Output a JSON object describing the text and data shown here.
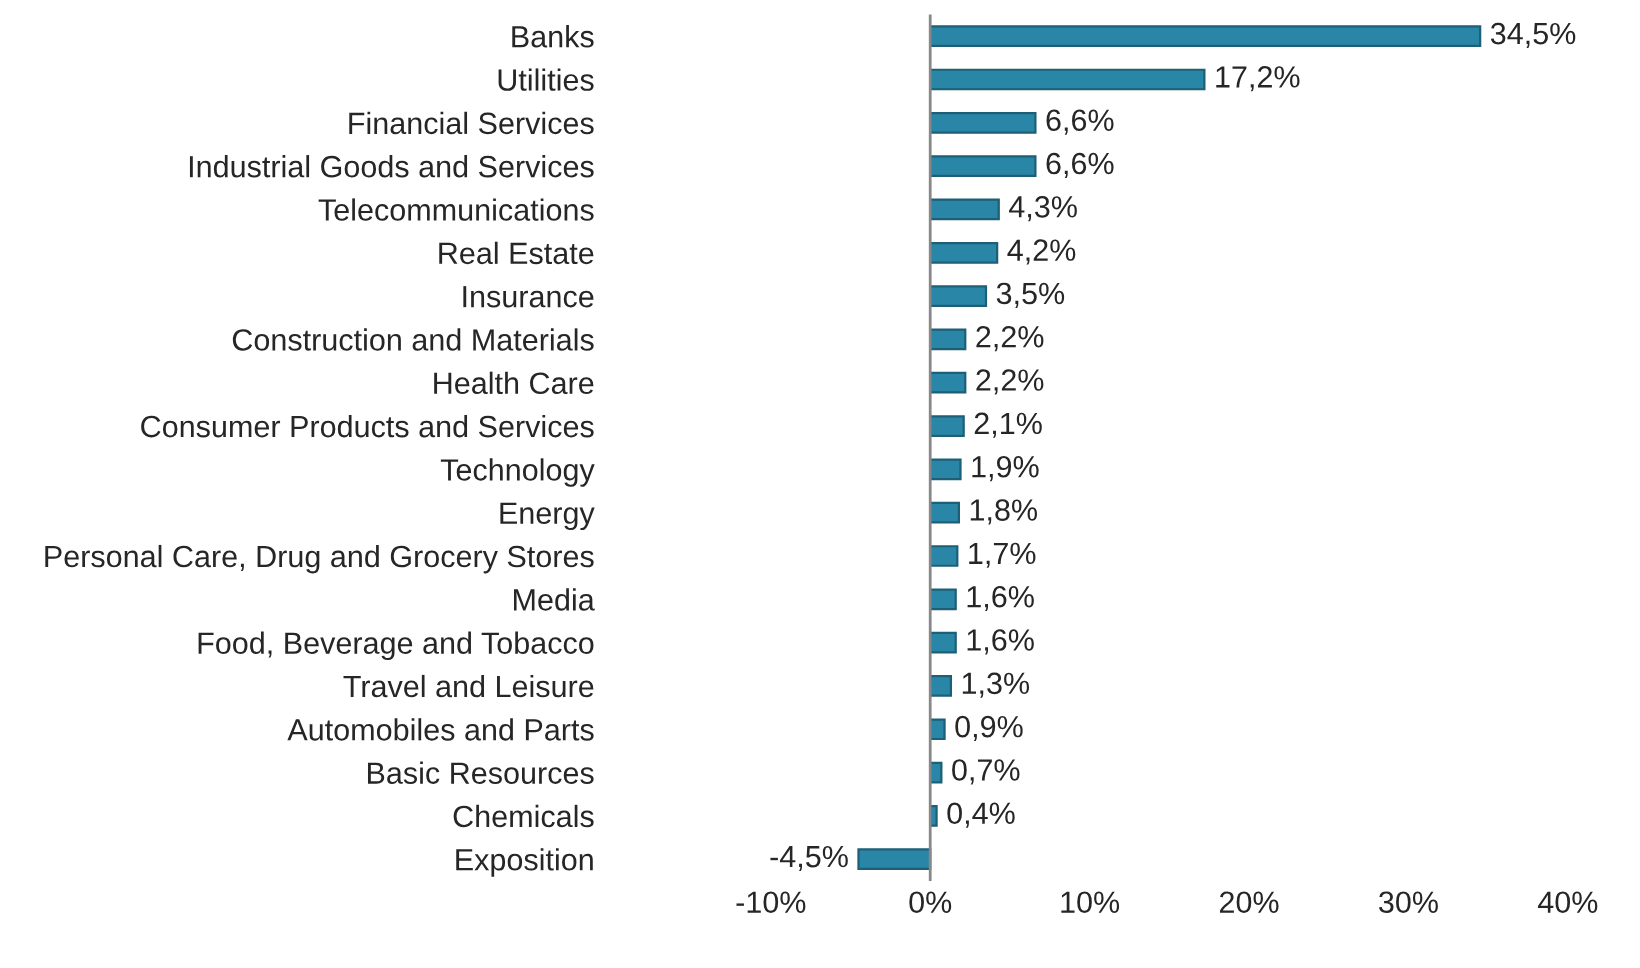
{
  "chart_data": {
    "type": "bar",
    "orientation": "horizontal",
    "categories": [
      "Banks",
      "Utilities",
      "Financial Services",
      "Industrial Goods and Services",
      "Telecommunications",
      "Real Estate",
      "Insurance",
      "Construction and Materials",
      "Health Care",
      "Consumer Products and Services",
      "Technology",
      "Energy",
      "Personal Care, Drug and Grocery Stores",
      "Media",
      "Food, Beverage and Tobacco",
      "Travel and Leisure",
      "Automobiles and Parts",
      "Basic Resources",
      "Chemicals",
      "Exposition"
    ],
    "values": [
      34.5,
      17.2,
      6.6,
      6.6,
      4.3,
      4.2,
      3.5,
      2.2,
      2.2,
      2.1,
      1.9,
      1.8,
      1.7,
      1.6,
      1.6,
      1.3,
      0.9,
      0.7,
      0.4,
      -4.5
    ],
    "value_labels": [
      "34,5%",
      "17,2%",
      "6,6%",
      "6,6%",
      "4,3%",
      "4,2%",
      "3,5%",
      "2,2%",
      "2,2%",
      "2,1%",
      "1,9%",
      "1,8%",
      "1,7%",
      "1,6%",
      "1,6%",
      "1,3%",
      "0,9%",
      "0,7%",
      "0,4%",
      "-4,5%"
    ],
    "color": "#2a86a6",
    "xlim": [
      -10,
      40
    ],
    "xticks": [
      {
        "value": -10,
        "label": "-10%"
      },
      {
        "value": 0,
        "label": "0%"
      },
      {
        "value": 10,
        "label": "10%"
      },
      {
        "value": 20,
        "label": "20%"
      },
      {
        "value": 30,
        "label": "30%"
      },
      {
        "value": 40,
        "label": "40%"
      }
    ],
    "ref_lines": [
      {
        "axis": "x",
        "value": 0,
        "color": "#888888"
      }
    ]
  }
}
